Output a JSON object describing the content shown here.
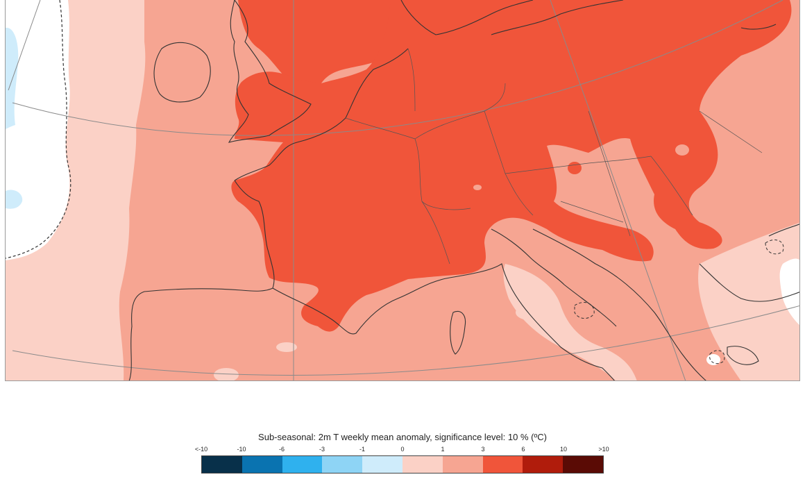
{
  "legend": {
    "title": "Sub-seasonal: 2m T weekly mean anomaly, significance level: 10 % (ºC)",
    "ticks": [
      "<-10",
      "-10",
      "-6",
      "-3",
      "-1",
      "0",
      "1",
      "3",
      "6",
      "10",
      ">10"
    ],
    "classes": [
      {
        "range": "<-10 to -10",
        "color": "#08304a"
      },
      {
        "range": "-10 to -6",
        "color": "#0a73b0"
      },
      {
        "range": "-6 to -3",
        "color": "#2fb1ee"
      },
      {
        "range": "-3 to -1",
        "color": "#8ed4f5"
      },
      {
        "range": "-1 to 0",
        "color": "#cfecfb"
      },
      {
        "range": "0 to 1",
        "color": "#fbd1c6"
      },
      {
        "range": "1 to 3",
        "color": "#f6a592"
      },
      {
        "range": "3 to 6",
        "color": "#f0553a"
      },
      {
        "range": "6 to 10",
        "color": "#b01c0c"
      },
      {
        "range": "10 to >10",
        "color": "#5a0b05"
      }
    ]
  },
  "map": {
    "region": "Europe",
    "colors": {
      "ocean_weak": "#fbd1c6",
      "anomaly_1_3": "#f6a592",
      "anomaly_3_6": "#f0553a",
      "near_zero": "#ffffff",
      "cool": "#cfecfb",
      "coastline": "#333333",
      "gridline": "#8a8a8a"
    }
  }
}
